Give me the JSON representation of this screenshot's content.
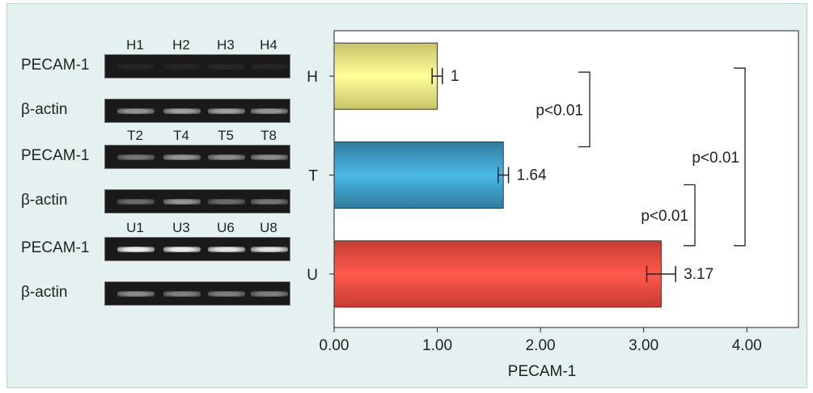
{
  "gels": [
    {
      "group": "H",
      "lanes": [
        "H1",
        "H2",
        "H3",
        "H4"
      ],
      "rows": [
        {
          "label": "PECAM-1",
          "band_intensity": [
            0.04,
            0.04,
            0.05,
            0.04
          ]
        },
        {
          "label": "β-actin",
          "band_intensity": [
            0.55,
            0.6,
            0.6,
            0.55
          ]
        }
      ]
    },
    {
      "group": "T",
      "lanes": [
        "T2",
        "T4",
        "T5",
        "T8"
      ],
      "rows": [
        {
          "label": "PECAM-1",
          "band_intensity": [
            0.4,
            0.55,
            0.5,
            0.5
          ]
        },
        {
          "label": "β-actin",
          "band_intensity": [
            0.35,
            0.55,
            0.35,
            0.4
          ]
        }
      ]
    },
    {
      "group": "U",
      "lanes": [
        "U1",
        "U3",
        "U6",
        "U8"
      ],
      "rows": [
        {
          "label": "PECAM-1",
          "band_intensity": [
            0.95,
            0.95,
            0.92,
            0.9
          ]
        },
        {
          "label": "β-actin",
          "band_intensity": [
            0.5,
            0.45,
            0.45,
            0.45
          ]
        }
      ]
    }
  ],
  "chart_data": {
    "type": "bar",
    "orientation": "horizontal",
    "categories": [
      "H",
      "T",
      "U"
    ],
    "values": [
      1.0,
      1.64,
      3.17
    ],
    "errors": [
      0.05,
      0.05,
      0.14
    ],
    "data_labels": [
      "1",
      "1.64",
      "3.17"
    ],
    "xlabel": "PECAM-1",
    "ylabel": "",
    "xlim": [
      0,
      4.5
    ],
    "xticks": [
      0,
      1,
      2,
      3,
      4
    ],
    "xtick_labels": [
      "0.00",
      "1.00",
      "2.00",
      "3.00",
      "4.00"
    ],
    "grid": false,
    "bar_colors": [
      "#ece67a",
      "#3a93b8",
      "#e9473c"
    ],
    "significance": [
      {
        "between": [
          "H",
          "T"
        ],
        "label": "p<0.01"
      },
      {
        "between": [
          "T",
          "U"
        ],
        "label": "p<0.01"
      },
      {
        "between": [
          "H",
          "U"
        ],
        "label": "p<0.01"
      }
    ]
  }
}
